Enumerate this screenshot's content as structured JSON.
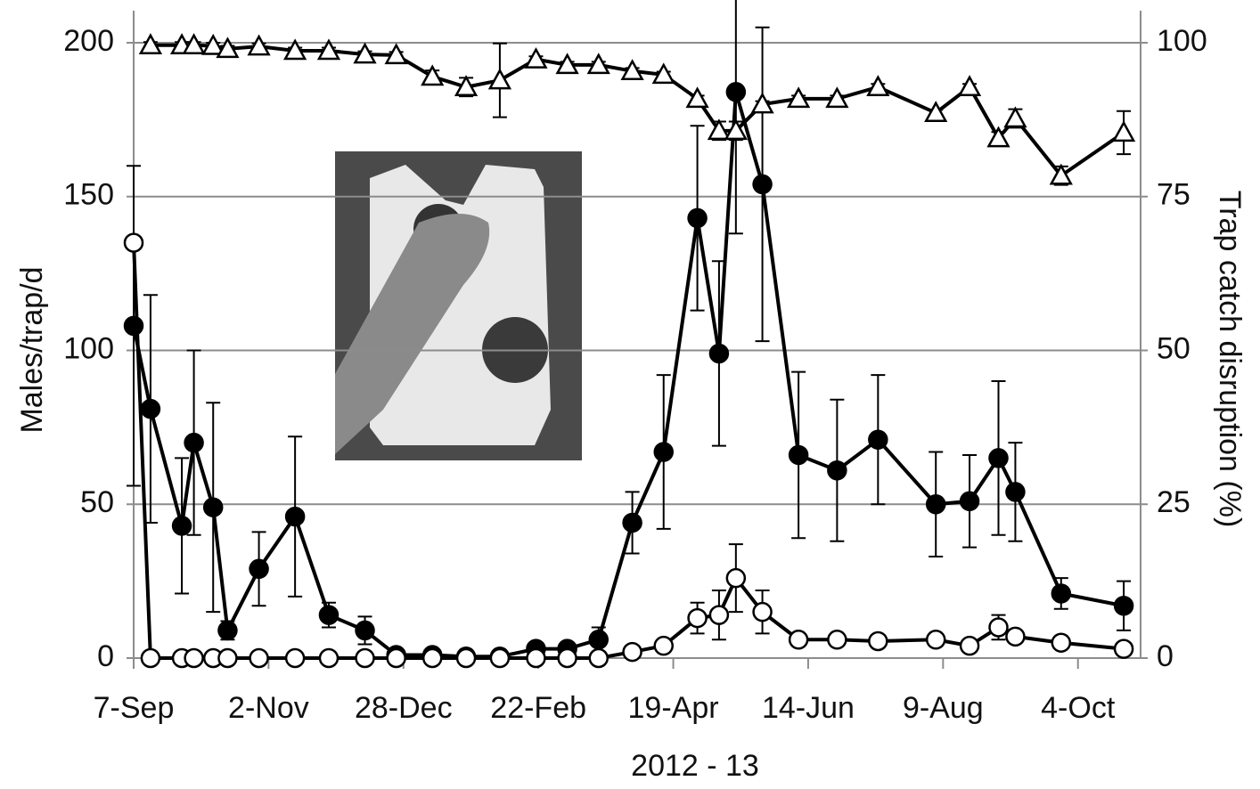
{
  "chart_data": {
    "type": "line",
    "x_label": "2012 - 13",
    "y_label": "Males/trap/d",
    "y2_label": "Trap catch disruption (%)",
    "x": [
      0,
      7,
      20,
      25,
      33,
      39,
      52,
      67,
      81,
      96,
      109,
      124,
      138,
      152,
      167,
      180,
      193,
      207,
      220,
      234,
      243,
      250,
      261,
      276,
      292,
      309,
      333,
      347,
      359,
      366,
      385,
      411
    ],
    "xlim": [
      0,
      418
    ],
    "xticks": [
      {
        "value": 0,
        "label": "7-Sep"
      },
      {
        "value": 56,
        "label": "2-Nov"
      },
      {
        "value": 112,
        "label": "28-Dec"
      },
      {
        "value": 168,
        "label": "22-Feb"
      },
      {
        "value": 224,
        "label": "19-Apr"
      },
      {
        "value": 280,
        "label": "14-Jun"
      },
      {
        "value": 336,
        "label": "9-Aug"
      },
      {
        "value": 392,
        "label": "4-Oct"
      }
    ],
    "ylim": [
      0,
      200
    ],
    "yticks": [
      0,
      50,
      100,
      150,
      200
    ],
    "y2lim": [
      0,
      100
    ],
    "y2ticks": [
      0,
      25,
      50,
      75,
      100
    ],
    "grid": true,
    "series": [
      {
        "color": "#000000",
        "marker": "open-triangle",
        "axis": "y2",
        "values": [
          null,
          99.6,
          99.6,
          99.6,
          99.5,
          99,
          99.4,
          98.7,
          98.7,
          98.1,
          98,
          94.5,
          92.8,
          93.9,
          97.3,
          96.4,
          96.4,
          95.4,
          94.8,
          90.9,
          85.7,
          85.7,
          90,
          90.9,
          90.9,
          92.8,
          88.6,
          92.8,
          84.5,
          87.7,
          78.4,
          85.4
        ],
        "errors": [
          null,
          0.5,
          0.5,
          0.5,
          0.5,
          0.5,
          0.5,
          0.5,
          0.5,
          0.5,
          0.5,
          1,
          1.5,
          6,
          0.5,
          0.5,
          0.5,
          0.5,
          0.5,
          0.5,
          1.5,
          1.5,
          0.5,
          0.5,
          0.5,
          0.5,
          0.5,
          0.5,
          1,
          1.5,
          1.5,
          3.5
        ]
      },
      {
        "color": "#000000",
        "marker": "circle",
        "values": [
          108,
          81,
          43,
          70,
          49,
          9,
          29,
          46,
          14,
          9,
          1,
          1,
          0.5,
          0.5,
          3,
          3,
          6,
          44,
          67,
          143,
          99,
          184,
          154,
          66,
          61,
          71,
          50,
          51,
          65,
          54,
          21,
          17
        ],
        "errors": [
          52,
          37,
          22,
          30,
          34,
          3,
          12,
          26,
          4,
          4.5,
          1,
          1,
          1,
          1,
          1,
          1,
          4,
          10,
          25,
          30,
          30,
          46,
          51,
          27,
          23,
          21,
          17,
          15,
          25,
          16,
          5,
          8
        ]
      },
      {
        "color": "#000000",
        "marker": "open-circle",
        "values": [
          135,
          0,
          0,
          0,
          0,
          0,
          0,
          0,
          0,
          0,
          0,
          0,
          0,
          0,
          0,
          0,
          0,
          2,
          4,
          13,
          14,
          26,
          15,
          6,
          6,
          5.5,
          6,
          4,
          10,
          7,
          5,
          3
        ],
        "errors": [
          1,
          1,
          1,
          1,
          1,
          1,
          1,
          1,
          1,
          1,
          1,
          1,
          1,
          1,
          1,
          1,
          1,
          1,
          1,
          5,
          8,
          11,
          7,
          1,
          1,
          1,
          1,
          1,
          4,
          2,
          1,
          1
        ]
      }
    ]
  }
}
